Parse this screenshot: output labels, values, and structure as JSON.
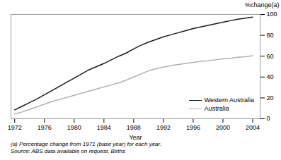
{
  "chart_data": {
    "type": "line",
    "xlabel": "Year",
    "ylabel": "%change(a)",
    "annotations": [
      "(a) Percentage change from 1971 (base year) for each year.",
      "Source: ABS data available on request, Births"
    ],
    "x": [
      1972,
      1973,
      1974,
      1975,
      1976,
      1977,
      1978,
      1979,
      1980,
      1981,
      1982,
      1983,
      1984,
      1985,
      1986,
      1987,
      1988,
      1989,
      1990,
      1991,
      1992,
      1993,
      1994,
      1995,
      1996,
      1997,
      1998,
      1999,
      2000,
      2001,
      2002,
      2003,
      2004
    ],
    "series": [
      {
        "name": "Western Australia",
        "color": "#1a1a1a",
        "values": [
          8.5,
          12,
          15.5,
          19,
          23,
          27,
          31,
          35,
          39,
          43,
          47,
          50,
          53,
          56.5,
          60,
          63,
          67,
          70.5,
          73.5,
          76,
          78.5,
          80.5,
          82.5,
          84.5,
          86.5,
          88,
          89.5,
          91,
          92.5,
          94,
          95.5,
          96.5,
          97.5
        ]
      },
      {
        "name": "Australia",
        "color": "#b0b0b0",
        "values": [
          4.5,
          6.5,
          9,
          11.5,
          14,
          16.5,
          18.5,
          20.5,
          22.5,
          24.5,
          26.5,
          28.5,
          30.5,
          32.5,
          34.5,
          37,
          40,
          43,
          46,
          48,
          49.5,
          51,
          52,
          53,
          54,
          55,
          55.5,
          56.5,
          57.5,
          58,
          59,
          59.5,
          60.5
        ]
      }
    ],
    "xlim": [
      1971.5,
      2005
    ],
    "ylim": [
      0,
      100
    ],
    "xticks": [
      1972,
      1976,
      1980,
      1984,
      1988,
      1992,
      1996,
      2000,
      2004
    ],
    "yticks": [
      0,
      20,
      40,
      60,
      80,
      100
    ],
    "grid": false,
    "legend": "lower right"
  }
}
